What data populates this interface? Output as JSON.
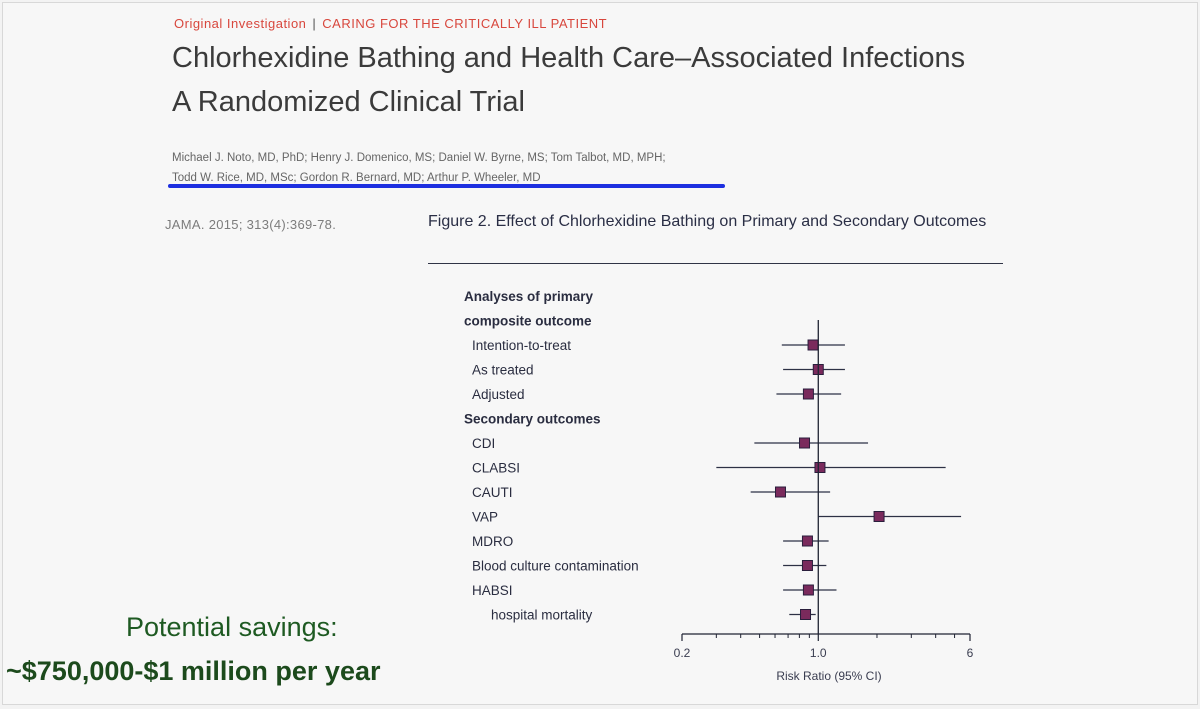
{
  "header": {
    "kicker_left": "Original Investigation",
    "kicker_sep": "|",
    "kicker_right": "CARING FOR THE CRITICALLY ILL PATIENT",
    "title": "Chlorhexidine Bathing and Health Care–Associated Infections",
    "subtitle": "A Randomized Clinical Trial",
    "authors_line1": "Michael J. Noto, MD, PhD; Henry J. Domenico, MS; Daniel W. Byrne, MS; Tom Talbot, MD, MPH;",
    "authors_line2": "Todd W. Rice, MD, MSc; Gordon R. Bernard, MD; Arthur P. Wheeler, MD",
    "citation": "JAMA. 2015; 313(4):369-78."
  },
  "figure": {
    "caption": "Figure 2. Effect of Chlorhexidine Bathing on Primary and Secondary Outcomes"
  },
  "chart_data": {
    "type": "forest",
    "xscale": "log",
    "xlabel": "Risk Ratio (95% CI)",
    "xticks": [
      0.2,
      1.0,
      6
    ],
    "xtick_labels": [
      "0.2",
      "1.0",
      "6"
    ],
    "reference_line": 1.0,
    "rows": [
      {
        "label": "Analyses of primary",
        "header": true
      },
      {
        "label": "composite outcome",
        "header": true
      },
      {
        "label": "Intention-to-treat",
        "rr": 0.94,
        "lo": 0.65,
        "hi": 1.37
      },
      {
        "label": "As treated",
        "rr": 1.0,
        "lo": 0.66,
        "hi": 1.37
      },
      {
        "label": "Adjusted",
        "rr": 0.89,
        "lo": 0.61,
        "hi": 1.31
      },
      {
        "label": "Secondary outcomes",
        "header": true
      },
      {
        "label": "CDI",
        "rr": 0.85,
        "lo": 0.47,
        "hi": 1.8
      },
      {
        "label": "CLABSI",
        "rr": 1.02,
        "lo": 0.3,
        "hi": 4.5
      },
      {
        "label": "CAUTI",
        "rr": 0.64,
        "lo": 0.45,
        "hi": 1.15
      },
      {
        "label": "VAP",
        "rr": 2.05,
        "lo": 1.0,
        "hi": 5.4
      },
      {
        "label": "MDRO",
        "rr": 0.88,
        "lo": 0.66,
        "hi": 1.13
      },
      {
        "label": "Blood culture contamination",
        "rr": 0.88,
        "lo": 0.66,
        "hi": 1.1
      },
      {
        "label": "HABSI",
        "rr": 0.89,
        "lo": 0.66,
        "hi": 1.24
      },
      {
        "label": "hospital mortality",
        "rr": 0.86,
        "lo": 0.71,
        "hi": 0.97,
        "indent": true
      }
    ]
  },
  "savings": {
    "line1": "Potential savings:",
    "line2": "~$750,000-$1 million per year"
  },
  "colors": {
    "kicker": "#d8473d",
    "underline": "#1d2fe0",
    "marker": "#7a2a5c",
    "savings": "#1e5a22"
  }
}
